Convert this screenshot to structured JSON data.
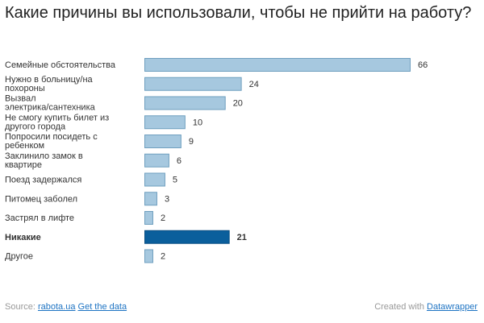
{
  "chart_data": {
    "type": "bar",
    "orientation": "horizontal",
    "title": "Какие причины вы использовали, чтобы не прийти на работу?",
    "categories": [
      [
        "Семейные обстоятельства"
      ],
      [
        "Нужно в больницу/на",
        "похороны"
      ],
      [
        "Вызвал",
        "электрика/сантехника"
      ],
      [
        "Не смогу купить билет из",
        "другого города"
      ],
      [
        "Попросили посидеть с",
        "ребенком"
      ],
      [
        "Заклинило замок в",
        "квартире"
      ],
      [
        "Поезд задержался"
      ],
      [
        "Питомец заболел"
      ],
      [
        "Застрял в лифте"
      ],
      [
        "Никакие"
      ],
      [
        "Другое"
      ]
    ],
    "values": [
      66,
      24,
      20,
      10,
      9,
      6,
      5,
      3,
      2,
      21,
      2
    ],
    "highlight_index": 9,
    "xlim": [
      0,
      66
    ],
    "colors": {
      "bar": "#a6c8df",
      "bar_border": "#6f9fbf",
      "highlight": "#0b5f9c",
      "highlight_border": "#0a4f82"
    }
  },
  "footer": {
    "source_prefix": "Source: ",
    "source_link": "rabota.ua",
    "get_data": "Get the data",
    "created_prefix": "Created with ",
    "created_link": "Datawrapper"
  }
}
